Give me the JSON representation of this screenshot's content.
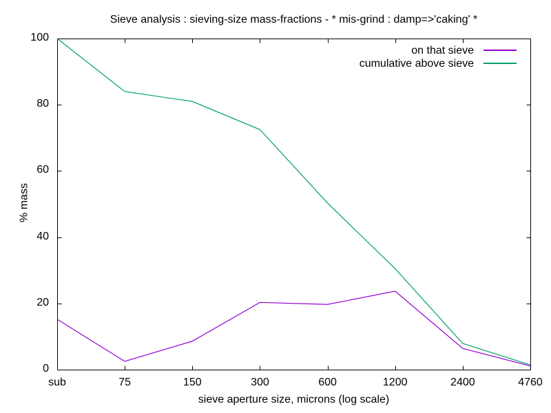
{
  "chart_data": {
    "type": "line",
    "title": "Sieve analysis : sieving-size mass-fractions - * mis-grind : damp=>'caking' *",
    "xlabel": "sieve aperture size, microns  (log scale)",
    "ylabel": "% mass",
    "categories": [
      "sub",
      "75",
      "150",
      "300",
      "600",
      "1200",
      "2400",
      "4760"
    ],
    "y_ticks": [
      0,
      20,
      40,
      60,
      80,
      100
    ],
    "ylim": [
      0,
      100
    ],
    "grid": false,
    "legend_position": "top-right-inside",
    "border_color": "#000000",
    "series": [
      {
        "name": "on that sieve",
        "color": "#9400d3",
        "values": [
          15.2,
          2.5,
          8.6,
          20.3,
          19.7,
          23.7,
          6.4,
          1.1
        ]
      },
      {
        "name": "cumulative above sieve",
        "color": "#009e73",
        "values": [
          100,
          84,
          81,
          72.5,
          50.3,
          30.5,
          7.9,
          1.4
        ]
      }
    ]
  }
}
